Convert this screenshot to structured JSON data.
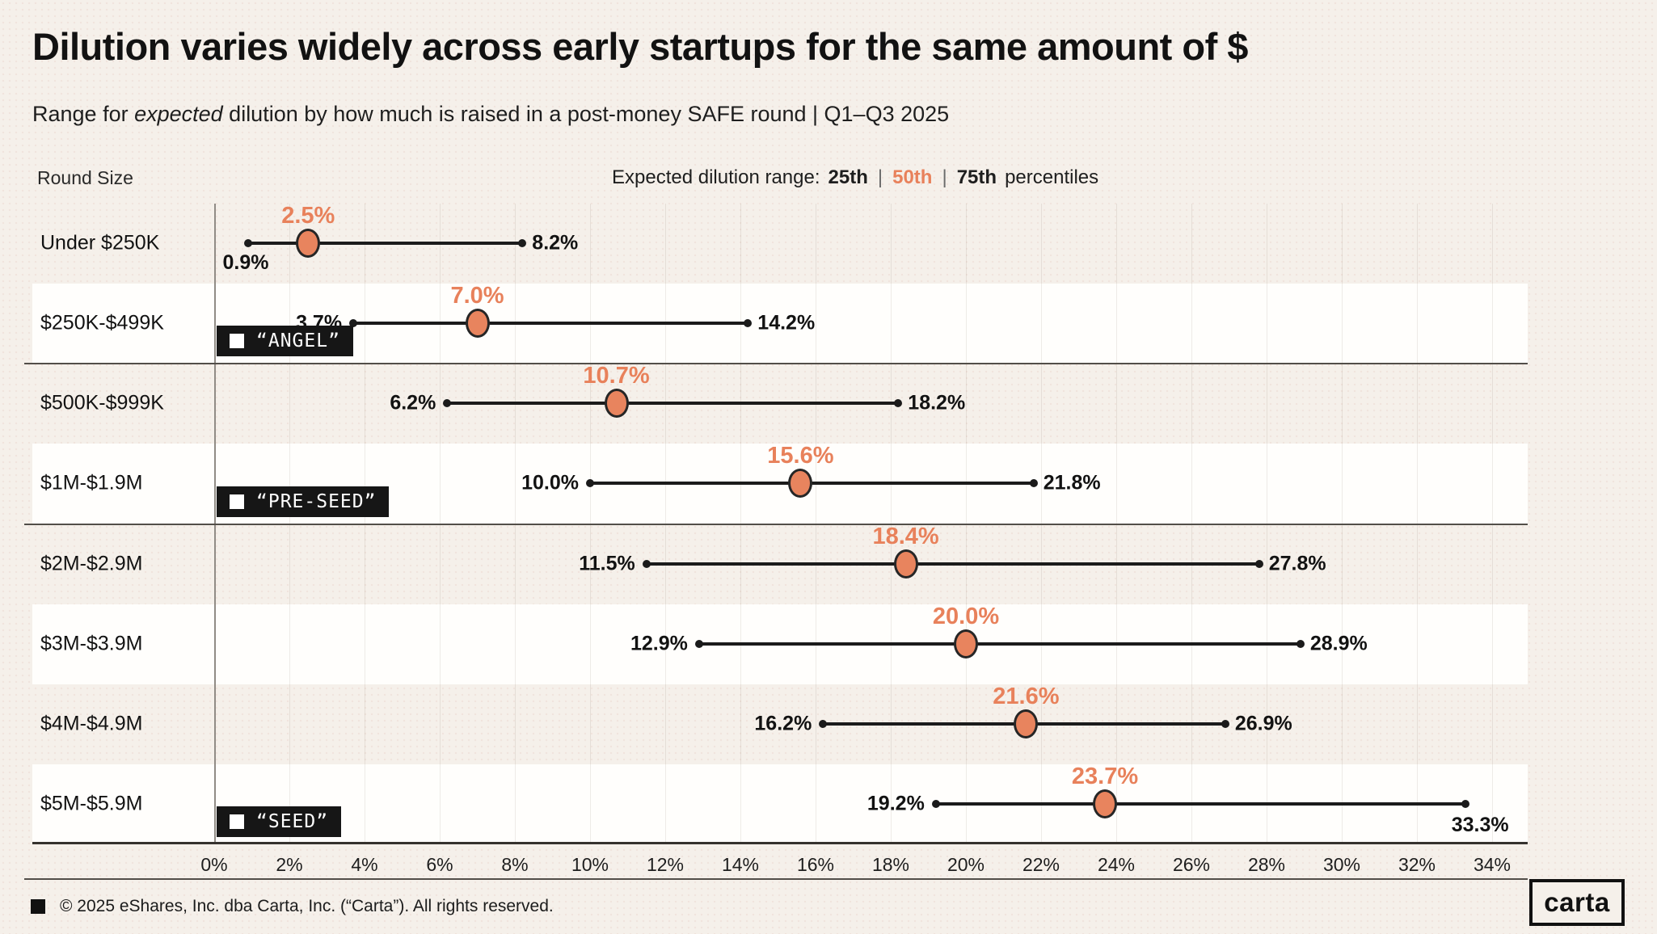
{
  "header": {
    "title": "Dilution varies widely across early startups for the same amount of $",
    "subtitle_prefix": "Range for ",
    "subtitle_italic": "expected",
    "subtitle_suffix": " dilution by how much is raised in a post-money SAFE round | Q1–Q3 2025"
  },
  "legend": {
    "prefix": "Expected dilution range:",
    "p25": "25th",
    "separator": "|",
    "p50": "50th",
    "p75": "75th",
    "suffix": "percentiles"
  },
  "footer": {
    "copyright": "© 2025 eShares, Inc. dba Carta, Inc. (“Carta”). All rights reserved.",
    "logo": "carta"
  },
  "colors": {
    "accent_orange": "#e8845e",
    "line_black": "#1b1b1b",
    "background_beige": "#f5f0ea",
    "row_white": "#fffefc",
    "group_box_black": "#161616"
  },
  "chart_data": {
    "type": "dumbbell-range",
    "title": "Dilution varies widely across early startups for the same amount of $",
    "ylabel": "Round Size",
    "xlabel_ticks": [
      "0%",
      "2%",
      "4%",
      "6%",
      "8%",
      "10%",
      "12%",
      "14%",
      "16%",
      "18%",
      "20%",
      "22%",
      "24%",
      "26%",
      "28%",
      "30%",
      "32%",
      "34%"
    ],
    "tick_values": [
      0,
      2,
      4,
      6,
      8,
      10,
      12,
      14,
      16,
      18,
      20,
      22,
      24,
      26,
      28,
      30,
      32,
      34
    ],
    "x_range_pct": [
      0,
      36.8
    ],
    "grid": true,
    "series_meaning": {
      "p25": "25th percentile",
      "p50": "50th percentile (median)",
      "p75": "75th percentile"
    },
    "rows": [
      {
        "label": "Under $250K",
        "p25": 0.9,
        "p50": 2.5,
        "p75": 8.2,
        "p25_label": "0.9%",
        "p50_label": "2.5%",
        "p75_label": "8.2%",
        "p25_pos": "below",
        "p75_pos": "side",
        "group": null,
        "divider_after": false
      },
      {
        "label": "$250K-$499K",
        "p25": 3.7,
        "p50": 7.0,
        "p75": 14.2,
        "p25_label": "3.7%",
        "p50_label": "7.0%",
        "p75_label": "14.2%",
        "p25_pos": "side",
        "p75_pos": "side",
        "group": "“ANGEL”",
        "divider_after": true
      },
      {
        "label": "$500K-$999K",
        "p25": 6.2,
        "p50": 10.7,
        "p75": 18.2,
        "p25_label": "6.2%",
        "p50_label": "10.7%",
        "p75_label": "18.2%",
        "p25_pos": "side",
        "p75_pos": "side",
        "group": null,
        "divider_after": false
      },
      {
        "label": "$1M-$1.9M",
        "p25": 10.0,
        "p50": 15.6,
        "p75": 21.8,
        "p25_label": "10.0%",
        "p50_label": "15.6%",
        "p75_label": "21.8%",
        "p25_pos": "side",
        "p75_pos": "side",
        "group": "“PRE-SEED”",
        "divider_after": true
      },
      {
        "label": "$2M-$2.9M",
        "p25": 11.5,
        "p50": 18.4,
        "p75": 27.8,
        "p25_label": "11.5%",
        "p50_label": "18.4%",
        "p75_label": "27.8%",
        "p25_pos": "side",
        "p75_pos": "side",
        "group": null,
        "divider_after": false
      },
      {
        "label": "$3M-$3.9M",
        "p25": 12.9,
        "p50": 20.0,
        "p75": 28.9,
        "p25_label": "12.9%",
        "p50_label": "20.0%",
        "p75_label": "28.9%",
        "p25_pos": "side",
        "p75_pos": "side",
        "group": null,
        "divider_after": false
      },
      {
        "label": "$4M-$4.9M",
        "p25": 16.2,
        "p50": 21.6,
        "p75": 26.9,
        "p25_label": "16.2%",
        "p50_label": "21.6%",
        "p75_label": "26.9%",
        "p25_pos": "side",
        "p75_pos": "side",
        "group": null,
        "divider_after": false
      },
      {
        "label": "$5M-$5.9M",
        "p25": 19.2,
        "p50": 23.7,
        "p75": 33.3,
        "p25_label": "19.2%",
        "p50_label": "23.7%",
        "p75_label": "33.3%",
        "p25_pos": "side",
        "p75_pos": "below",
        "group": "“SEED”",
        "divider_after": false
      }
    ]
  }
}
